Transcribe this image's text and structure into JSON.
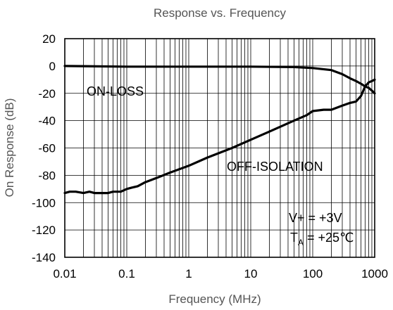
{
  "chart_data": {
    "type": "line",
    "title": "Response vs. Frequency",
    "xlabel": "Frequency (MHz)",
    "ylabel": "On Response (dB)",
    "xscale": "log",
    "xlim": [
      0.01,
      1000
    ],
    "ylim": [
      -140,
      20
    ],
    "x_ticks": [
      "0.01",
      "0.1",
      "1",
      "10",
      "100",
      "1000"
    ],
    "y_ticks": [
      "20",
      "0",
      "-20",
      "-40",
      "-60",
      "-80",
      "-100",
      "-120",
      "-140"
    ],
    "grid": true,
    "series": [
      {
        "name": "ON-LOSS",
        "x": [
          0.01,
          0.1,
          1,
          10,
          50,
          100,
          200,
          300,
          400,
          500,
          600,
          700,
          800,
          900,
          1000
        ],
        "y": [
          0,
          -0.5,
          -0.5,
          -0.5,
          -0.8,
          -1.5,
          -3,
          -6,
          -9,
          -11,
          -13,
          -15,
          -16,
          -18,
          -20
        ]
      },
      {
        "name": "OFF-ISOLATION",
        "x": [
          0.01,
          0.012,
          0.015,
          0.02,
          0.025,
          0.03,
          0.04,
          0.05,
          0.06,
          0.08,
          0.1,
          0.12,
          0.15,
          0.2,
          0.3,
          0.5,
          1,
          2,
          5,
          10,
          20,
          50,
          80,
          100,
          150,
          200,
          300,
          400,
          500,
          600,
          700,
          800,
          900,
          1000
        ],
        "y": [
          -93,
          -92,
          -92,
          -93,
          -92,
          -93,
          -93,
          -93,
          -92,
          -92,
          -90,
          -89,
          -88,
          -85,
          -82,
          -78,
          -73,
          -67,
          -60,
          -54,
          -48,
          -40,
          -36,
          -33,
          -32,
          -32,
          -29,
          -27,
          -26,
          -22,
          -15,
          -12,
          -11,
          -10
        ]
      }
    ],
    "annotations": {
      "on_loss": "ON-LOSS",
      "off_isolation": "OFF-ISOLATION",
      "vplus": "V+ = +3V",
      "ta_main": "T",
      "ta_sub": "A",
      "ta_value": " = +25℃"
    }
  }
}
